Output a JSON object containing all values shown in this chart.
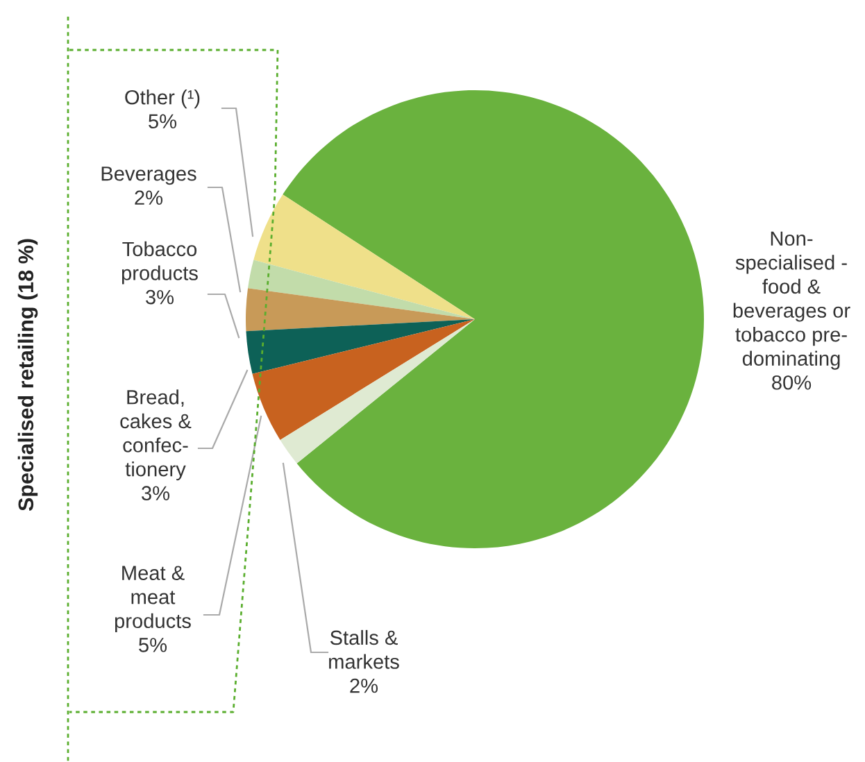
{
  "chart_data": {
    "type": "pie",
    "categories": [
      "Non-\nspecialised -\nfood &\nbeverages or\ntobacco pre-\ndominating",
      "Other (¹)",
      "Beverages",
      "Tobacco\nproducts",
      "Bread,\ncakes &\nconfec-\ntionery",
      "Meat &\nmeat\nproducts",
      "Stalls &\nmarkets"
    ],
    "values": [
      80,
      5,
      2,
      3,
      3,
      5,
      2
    ],
    "value_labels": [
      "80%",
      "5%",
      "2%",
      "3%",
      "3%",
      "5%",
      "2%"
    ],
    "colors": [
      "#6ab23e",
      "#efe08a",
      "#c2dcaa",
      "#c89a58",
      "#0d6157",
      "#c8621f",
      "#dfead2"
    ],
    "annotations": [
      "Specialised retailing (18 %)"
    ]
  }
}
